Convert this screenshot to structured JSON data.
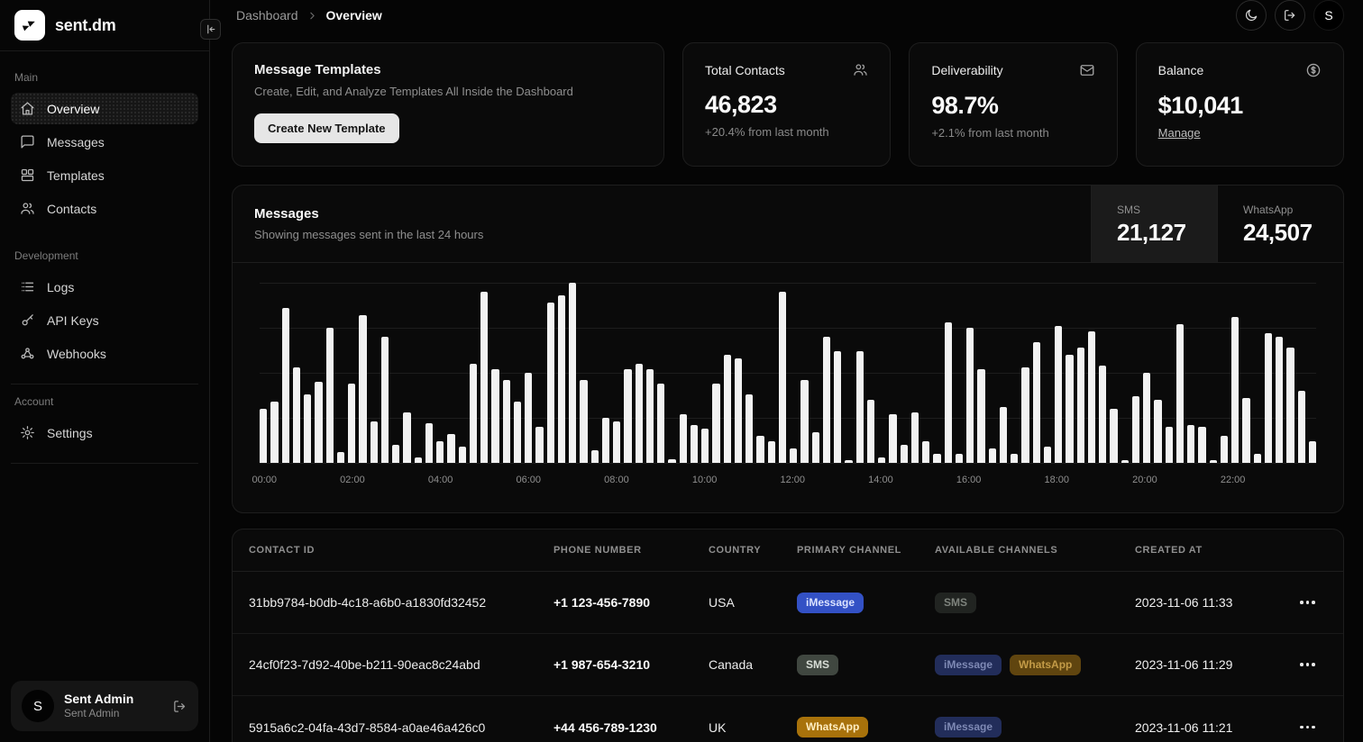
{
  "brand": {
    "name": "sent.dm",
    "logo_icon": "sent-arrows"
  },
  "sidebar": {
    "sections": [
      {
        "label": "Main",
        "bordered": false,
        "items": [
          {
            "label": "Overview",
            "icon": "home",
            "active": true
          },
          {
            "label": "Messages",
            "icon": "message-square",
            "active": false
          },
          {
            "label": "Templates",
            "icon": "layout-grid",
            "active": false
          },
          {
            "label": "Contacts",
            "icon": "users",
            "active": false
          }
        ]
      },
      {
        "label": "Development",
        "bordered": true,
        "items": [
          {
            "label": "Logs",
            "icon": "list",
            "active": false
          },
          {
            "label": "API Keys",
            "icon": "key",
            "active": false
          },
          {
            "label": "Webhooks",
            "icon": "webhook",
            "active": false
          }
        ]
      },
      {
        "label": "Account",
        "bordered": true,
        "items": [
          {
            "label": "Settings",
            "icon": "gear",
            "active": false
          }
        ]
      }
    ],
    "user": {
      "name": "Sent Admin",
      "role": "Sent Admin",
      "initial": "S",
      "action_icon": "logout"
    }
  },
  "header": {
    "breadcrumb": [
      "Dashboard",
      "Overview"
    ],
    "actions": [
      {
        "icon": "moon"
      },
      {
        "icon": "logout"
      }
    ],
    "avatar_initial": "S"
  },
  "cards": {
    "templates": {
      "title": "Message Templates",
      "description": "Create, Edit, and Analyze Templates All Inside the Dashboard",
      "button": "Create New Template"
    },
    "stats": [
      {
        "title": "Total Contacts",
        "icon": "users",
        "value": "46,823",
        "sub": "+20.4% from last month"
      },
      {
        "title": "Deliverability",
        "icon": "mail",
        "value": "98.7%",
        "sub": "+2.1% from last month"
      },
      {
        "title": "Balance",
        "icon": "dollar-circle",
        "value": "$10,041",
        "link": "Manage"
      }
    ]
  },
  "messages_panel": {
    "title": "Messages",
    "subtitle": "Showing messages sent in the last 24 hours",
    "tabs": [
      {
        "label": "SMS",
        "value": "21,127",
        "active": true
      },
      {
        "label": "WhatsApp",
        "value": "24,507",
        "active": false
      }
    ]
  },
  "chart_data": {
    "type": "bar",
    "title": "Messages sent in the last 24 hours",
    "x_labels": [
      "00:00",
      "02:00",
      "04:00",
      "06:00",
      "08:00",
      "10:00",
      "12:00",
      "14:00",
      "16:00",
      "18:00",
      "20:00",
      "22:00"
    ],
    "interval_minutes": 15,
    "ylim": [
      0,
      100
    ],
    "grid": "horizontal",
    "bar_color": "#f2f2f2",
    "values": [
      30,
      34,
      86,
      53,
      38,
      45,
      75,
      6,
      44,
      82,
      23,
      70,
      10,
      28,
      3,
      22,
      12,
      16,
      9,
      55,
      95,
      52,
      46,
      34,
      50,
      20,
      89,
      93,
      100,
      46,
      7,
      25,
      23,
      52,
      55,
      52,
      44,
      2,
      27,
      21,
      19,
      44,
      60,
      58,
      38,
      15,
      12,
      95,
      8,
      46,
      17,
      70,
      62,
      1,
      62,
      35,
      3,
      27,
      10,
      28,
      12,
      5,
      78,
      5,
      75,
      52,
      8,
      31,
      5,
      53,
      67,
      9,
      76,
      60,
      64,
      73,
      54,
      30,
      1,
      37,
      50,
      35,
      20,
      77,
      21,
      20,
      1,
      15,
      81,
      36,
      5,
      72,
      70,
      64,
      40,
      12
    ]
  },
  "table": {
    "columns": [
      "CONTACT ID",
      "PHONE NUMBER",
      "COUNTRY",
      "PRIMARY CHANNEL",
      "AVAILABLE CHANNELS",
      "CREATED AT"
    ],
    "rows": [
      {
        "contact_id": "31bb9784-b0db-4c18-a6b0-a1830fd32452",
        "phone": "+1 123-456-7890",
        "country": "USA",
        "primary_channel": "iMessage",
        "available_channels": [
          "SMS"
        ],
        "created_at": "2023-11-06 11:33"
      },
      {
        "contact_id": "24cf0f23-7d92-40be-b211-90eac8c24abd",
        "phone": "+1 987-654-3210",
        "country": "Canada",
        "primary_channel": "SMS",
        "available_channels": [
          "iMessage",
          "WhatsApp"
        ],
        "created_at": "2023-11-06 11:29"
      },
      {
        "contact_id": "5915a6c2-04fa-43d7-8584-a0ae46a426c0",
        "phone": "+44 456-789-1230",
        "country": "UK",
        "primary_channel": "WhatsApp",
        "available_channels": [
          "iMessage"
        ],
        "created_at": "2023-11-06 11:21"
      }
    ]
  },
  "colors": {
    "background": "#050505",
    "panel": "#0a0a0a",
    "border": "#1e1e1e",
    "text_muted": "#8f8f8f",
    "badges": {
      "iMessage": {
        "primary": {
          "bg": "#3351c5",
          "text": "#dbe3ff"
        },
        "muted": {
          "bg": "#222d5a",
          "text": "#7e89b4"
        }
      },
      "SMS": {
        "primary": {
          "bg": "#404740",
          "text": "#d8ddd6"
        },
        "muted": {
          "bg": "#212421",
          "text": "#7e837d"
        }
      },
      "WhatsApp": {
        "primary": {
          "bg": "#a8720b",
          "text": "#ffeec2"
        },
        "muted": {
          "bg": "#60450f",
          "text": "#c39b47"
        }
      }
    }
  }
}
